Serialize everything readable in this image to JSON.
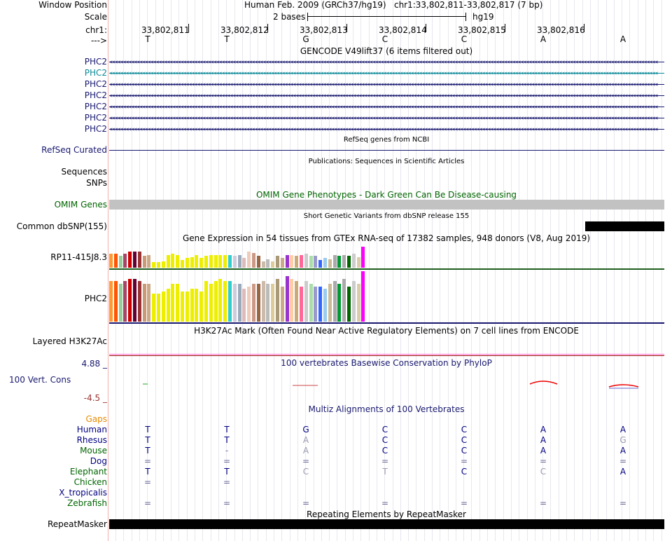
{
  "header": {
    "window_position_label": "Window Position",
    "assembly": "Human Feb. 2009 (GRCh37/hg19)",
    "position": "chr1:33,802,811-33,802,817 (7 bp)",
    "scale_label": "Scale",
    "scale_text": "2 bases",
    "scale_db": "hg19",
    "chrom_label": "chr1:",
    "strand_label": "--->",
    "coordinates": [
      "33,802,811",
      "33,802,812",
      "33,802,813",
      "33,802,814",
      "33,802,815",
      "33,802,816"
    ],
    "bases": [
      "T",
      "T",
      "G",
      "C",
      "C",
      "A",
      "A"
    ]
  },
  "gencode": {
    "title": "GENCODE V49lift37 (6 items filtered out)",
    "items": [
      {
        "label": "PHC2",
        "color": "#191970"
      },
      {
        "label": "PHC2",
        "color": "#0c8a99"
      },
      {
        "label": "PHC2",
        "color": "#191970"
      },
      {
        "label": "PHC2",
        "color": "#191970"
      },
      {
        "label": "PHC2",
        "color": "#191970"
      },
      {
        "label": "PHC2",
        "color": "#191970"
      },
      {
        "label": "PHC2",
        "color": "#191970"
      }
    ]
  },
  "refseq": {
    "title": "RefSeq genes from NCBI",
    "label": "RefSeq Curated"
  },
  "publications": {
    "title": "Publications: Sequences in Scientific Articles",
    "label1": "Sequences",
    "label2": "SNPs"
  },
  "omim": {
    "title": "OMIM Gene Phenotypes - Dark Green Can Be Disease-causing",
    "label": "OMIM Genes"
  },
  "dbsnp": {
    "title": "Short Genetic Variants from dbSNP release 155",
    "label": "Common dbSNP(155)"
  },
  "gtex": {
    "title": "Gene Expression in 54 tissues from GTEx RNA-seq of 17382 samples, 948 donors (V8, Aug 2019)",
    "genes": [
      {
        "label": "RP11-415J8.3",
        "values": [
          0.65,
          0.65,
          0.55,
          0.65,
          0.75,
          0.75,
          0.75,
          0.55,
          0.6,
          0.25,
          0.25,
          0.3,
          0.6,
          0.65,
          0.6,
          0.35,
          0.45,
          0.5,
          0.6,
          0.45,
          0.55,
          0.6,
          0.6,
          0.6,
          0.6,
          0.6,
          0.55,
          0.6,
          0.45,
          0.75,
          0.7,
          0.55,
          0.3,
          0.4,
          0.3,
          0.55,
          0.45,
          0.6,
          0.6,
          0.55,
          0.6,
          0.65,
          0.55,
          0.55,
          0.35,
          0.45,
          0.4,
          0.6,
          0.55,
          0.6,
          0.55,
          0.65,
          0.5,
          1.0
        ]
      },
      {
        "label": "PHC2",
        "values": [
          0.8,
          0.8,
          0.75,
          0.8,
          0.85,
          0.85,
          0.8,
          0.75,
          0.75,
          0.55,
          0.55,
          0.6,
          0.65,
          0.75,
          0.75,
          0.6,
          0.6,
          0.65,
          0.65,
          0.6,
          0.8,
          0.75,
          0.8,
          0.85,
          0.8,
          0.8,
          0.75,
          0.75,
          0.65,
          0.7,
          0.75,
          0.75,
          0.8,
          0.75,
          0.75,
          0.85,
          0.7,
          0.9,
          0.85,
          0.8,
          0.7,
          0.8,
          0.75,
          0.7,
          0.7,
          0.65,
          0.75,
          0.8,
          0.75,
          0.85,
          0.7,
          0.8,
          0.75,
          1.0
        ]
      }
    ],
    "colors": [
      "#ff9933",
      "#ff5500",
      "#99cc99",
      "#aa4466",
      "#cc0000",
      "#660033",
      "#993333",
      "#cc9977",
      "#ccaa88",
      "#eeee00",
      "#eeee00",
      "#eeee00",
      "#eeee00",
      "#eeee00",
      "#eeee00",
      "#eeee00",
      "#eeee00",
      "#eeee00",
      "#eeee00",
      "#eeee00",
      "#eeee00",
      "#eeee00",
      "#eeee00",
      "#eeee00",
      "#eeee00",
      "#33cccc",
      "#ccccdd",
      "#99aabb",
      "#ddbbbb",
      "#eeccbb",
      "#cc9988",
      "#996644",
      "#ccbbaa",
      "#bbbbbb",
      "#ddcc99",
      "#aa9977",
      "#ccaa88",
      "#9933cc",
      "#ffccaa",
      "#ccaa77",
      "#ff6699",
      "#cccccc",
      "#aaddaa",
      "#9999cc",
      "#3366ff",
      "#99ccee",
      "#ccbb99",
      "#aaaaaa",
      "#009933",
      "#aaaaaa",
      "#006600",
      "#cccccc",
      "#ddccaa",
      "#ff00ff"
    ]
  },
  "h3k27ac": {
    "title": "H3K27Ac Mark (Often Found Near Active Regulatory Elements) on 7 cell lines from ENCODE",
    "label": "Layered H3K27Ac"
  },
  "phylop": {
    "title": "100 vertebrates Basewise Conservation by PhyloP",
    "label": "100 Vert. Cons",
    "max": "4.88 _",
    "min": "-4.5 _"
  },
  "multiz": {
    "title": "Multiz Alignments of 100 Vertebrates",
    "gaps_label": "Gaps",
    "species": [
      {
        "name": "Human",
        "color": "#000080",
        "bases": [
          "T",
          "T",
          "G",
          "C",
          "C",
          "A",
          "A"
        ]
      },
      {
        "name": "Rhesus",
        "color": "#000080",
        "bases": [
          "T",
          "T",
          "A",
          "C",
          "C",
          "A",
          "G"
        ]
      },
      {
        "name": "Mouse",
        "color": "#006400",
        "bases": [
          "T",
          "-",
          "A",
          "C",
          "C",
          "A",
          "A"
        ]
      },
      {
        "name": "Dog",
        "color": "#000080",
        "bases": [
          "=",
          "=",
          "=",
          "=",
          "=",
          "=",
          "="
        ]
      },
      {
        "name": "Elephant",
        "color": "#006400",
        "bases": [
          "T",
          "T",
          "C",
          "T",
          "C",
          "C",
          "A"
        ]
      },
      {
        "name": "Chicken",
        "color": "#006400",
        "bases": [
          "=",
          "=",
          "",
          "",
          "",
          "",
          ""
        ]
      },
      {
        "name": "X_tropicalis",
        "color": "#000080",
        "bases": [
          "",
          "",
          "",
          "",
          "",
          "",
          ""
        ]
      },
      {
        "name": "Zebrafish",
        "color": "#006400",
        "bases": [
          "=",
          "=",
          "=",
          "=",
          "=",
          "=",
          "="
        ]
      }
    ]
  },
  "repeatmasker": {
    "title": "Repeating Elements by RepeatMasker",
    "label": "RepeatMasker"
  }
}
